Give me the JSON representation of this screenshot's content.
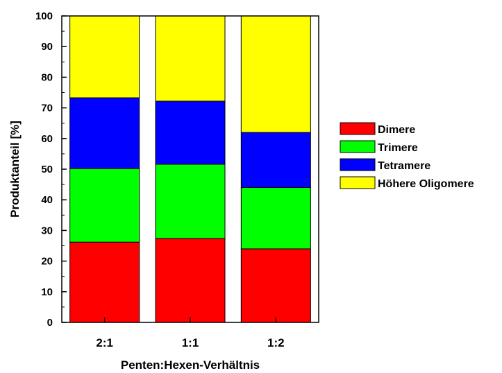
{
  "chart_data": {
    "type": "bar",
    "stacked": true,
    "categories": [
      "2:1",
      "1:1",
      "1:2"
    ],
    "series": [
      {
        "name": "Dimere",
        "values": [
          26.2,
          27.4,
          24.0
        ],
        "color": "#ff0000"
      },
      {
        "name": "Trimere",
        "values": [
          24.0,
          24.2,
          20.0
        ],
        "color": "#00ff00"
      },
      {
        "name": "Tetramere",
        "values": [
          23.1,
          20.6,
          18.0
        ],
        "color": "#0000ff"
      },
      {
        "name": "Höhere Oligomere",
        "values": [
          26.7,
          27.8,
          38.0
        ],
        "color": "#ffff00"
      }
    ],
    "xlabel": "Penten:Hexen-Verhältnis",
    "ylabel": "Produktanteil [%]",
    "ylim": [
      0,
      100
    ],
    "yticks": [
      0,
      10,
      20,
      30,
      40,
      50,
      60,
      70,
      80,
      90,
      100
    ],
    "grid": false,
    "legend_position": "right"
  }
}
